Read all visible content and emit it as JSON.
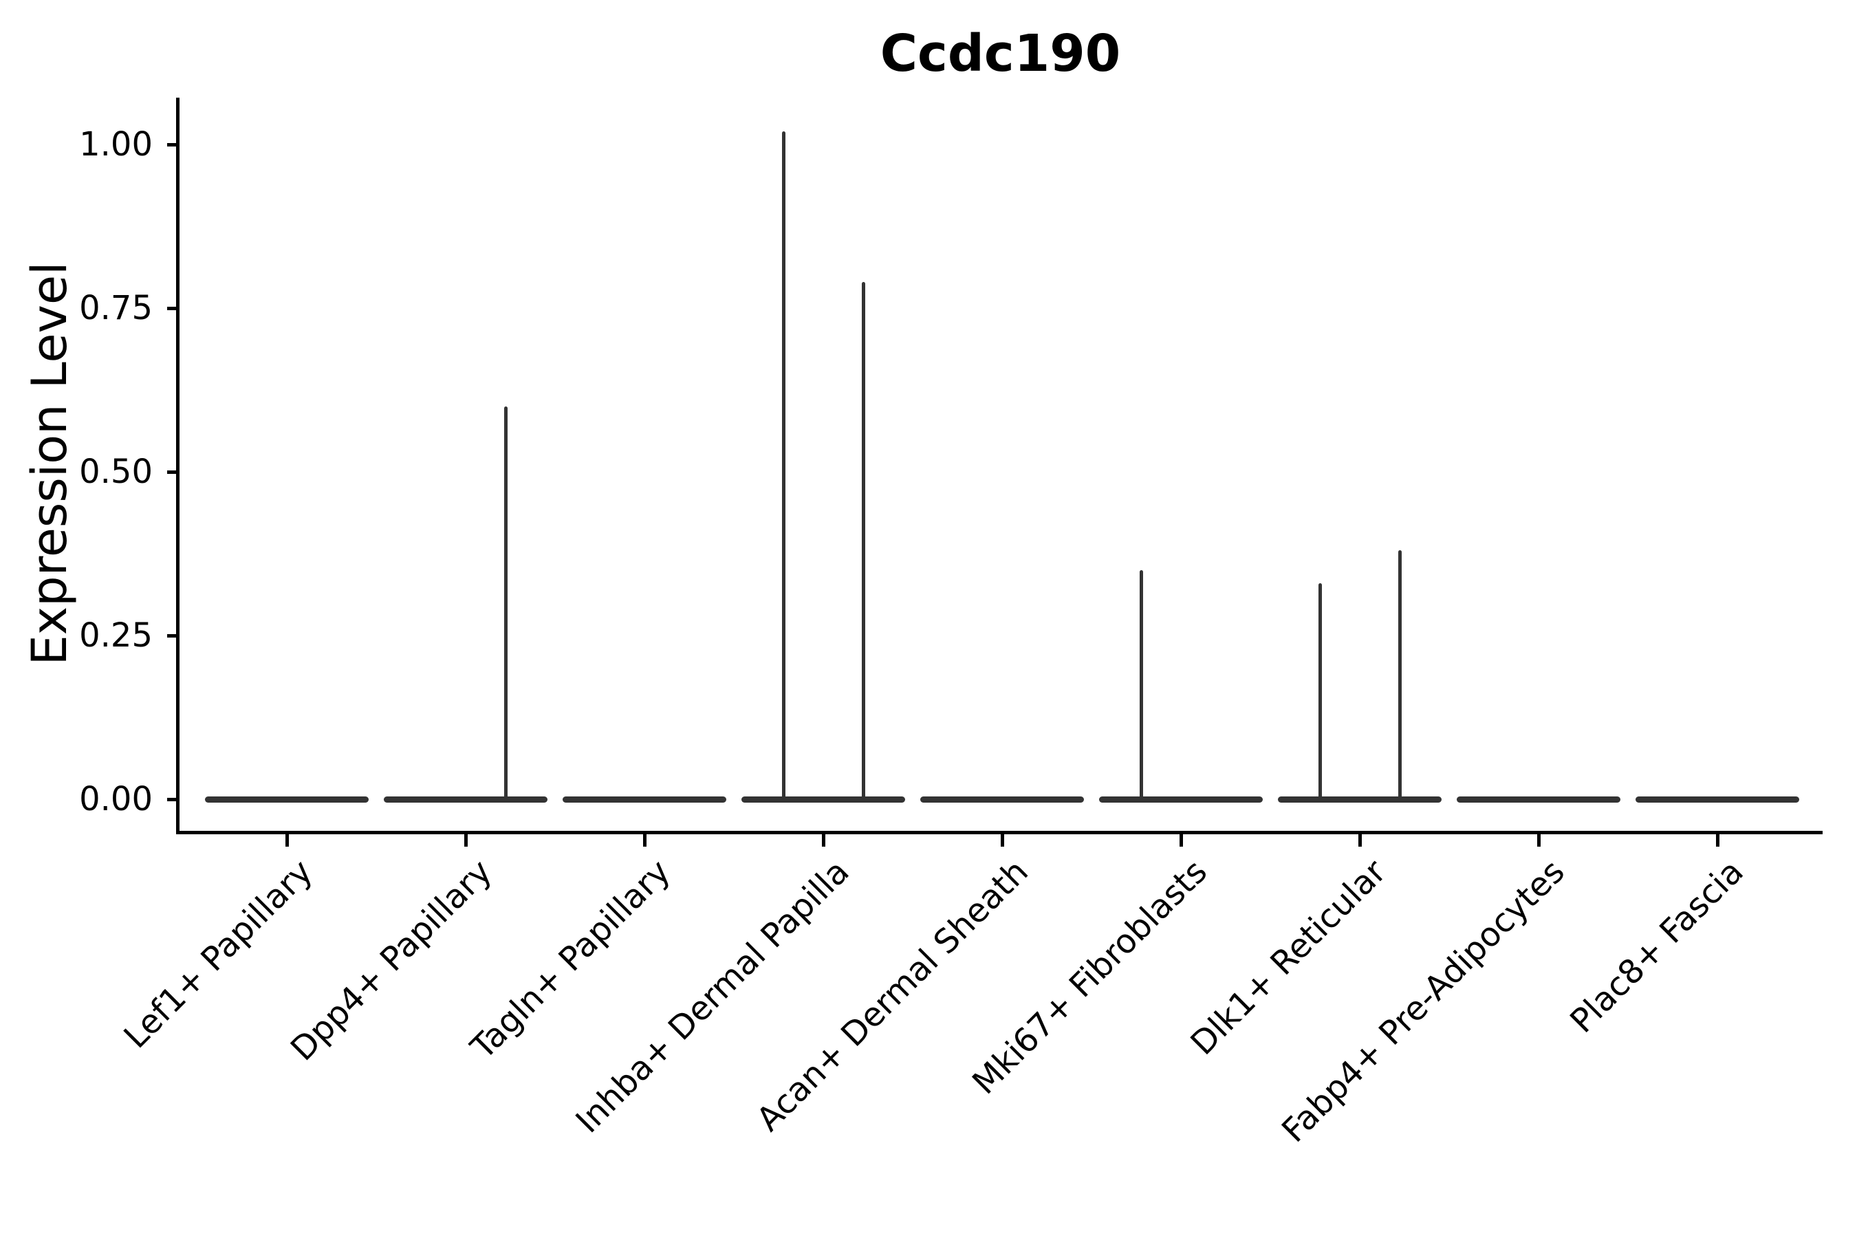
{
  "title": "Ccdc190",
  "y_axis": {
    "label": "Expression Level",
    "ticks": [
      {
        "label": "1.00",
        "value": 1.0
      },
      {
        "label": "0.75",
        "value": 0.75
      },
      {
        "label": "0.50",
        "value": 0.5
      },
      {
        "label": "0.25",
        "value": 0.25
      },
      {
        "label": "0.00",
        "value": 0.0
      }
    ]
  },
  "chart_data": {
    "type": "violin",
    "title": "Ccdc190",
    "xlabel": "",
    "ylabel": "Expression Level",
    "ylim": [
      0,
      1.07
    ],
    "grid": false,
    "legend": "none",
    "categories": [
      "Lef1+ Papillary",
      "Dpp4+ Papillary",
      "Tagln+ Papillary",
      "Inhba+ Dermal Papilla",
      "Acan+ Dermal Sheath",
      "Mki67+ Fibroblasts",
      "Dlk1+ Reticular",
      "Fabp4+ Pre-Adipocytes",
      "Plac8+ Fascia"
    ],
    "violins": [
      {
        "category": "Lef1+ Papillary",
        "baseline_value": 0.0,
        "peaks": []
      },
      {
        "category": "Dpp4+ Papillary",
        "baseline_value": 0.0,
        "peaks": [
          {
            "value": 0.6,
            "offset": "right"
          }
        ]
      },
      {
        "category": "Tagln+ Papillary",
        "baseline_value": 0.0,
        "peaks": []
      },
      {
        "category": "Inhba+ Dermal Papilla",
        "baseline_value": 0.0,
        "peaks": [
          {
            "value": 1.02,
            "offset": "left"
          },
          {
            "value": 0.79,
            "offset": "right"
          }
        ]
      },
      {
        "category": "Acan+ Dermal Sheath",
        "baseline_value": 0.0,
        "peaks": []
      },
      {
        "category": "Mki67+ Fibroblasts",
        "baseline_value": 0.0,
        "peaks": [
          {
            "value": 0.35,
            "offset": "left"
          }
        ]
      },
      {
        "category": "Dlk1+ Reticular",
        "baseline_value": 0.0,
        "peaks": [
          {
            "value": 0.33,
            "offset": "left"
          },
          {
            "value": 0.38,
            "offset": "right"
          }
        ]
      },
      {
        "category": "Fabp4+ Pre-Adipocytes",
        "baseline_value": 0.0,
        "peaks": []
      },
      {
        "category": "Plac8+ Fascia",
        "baseline_value": 0.0,
        "peaks": []
      }
    ],
    "description": "Violin plot of Ccdc190 expression; density concentrated at 0 for all clusters with thin spikes reaching each cluster's maximum expression."
  },
  "colors": {
    "violin": "#333333",
    "axis": "#000000",
    "text": "#000000",
    "background": "#ffffff"
  }
}
